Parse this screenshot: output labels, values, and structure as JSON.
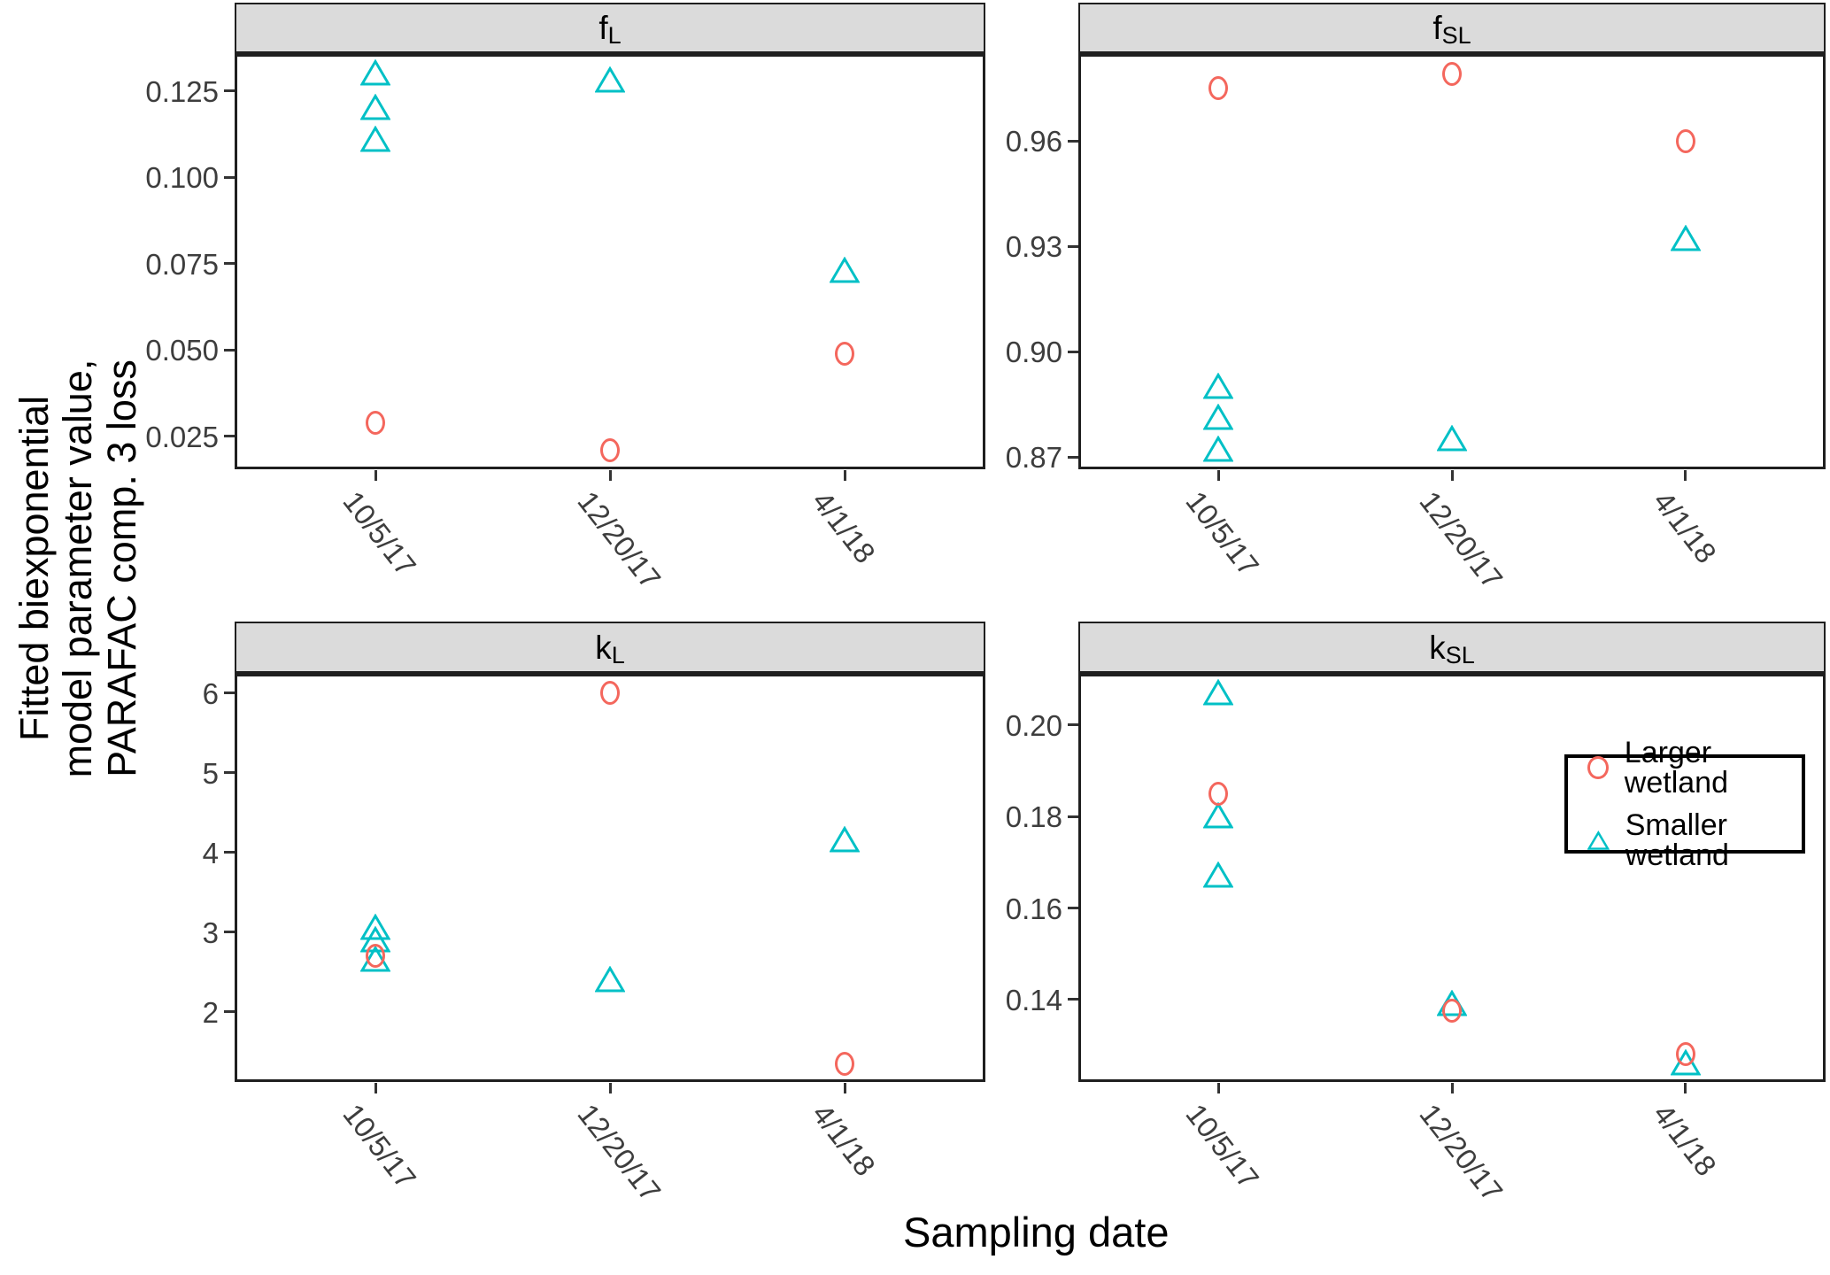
{
  "figure": {
    "x_axis_title": "Sampling date",
    "y_axis_title_lines": [
      "Fitted biexponential",
      "model parameter value,",
      "PARAFAC comp. 3 loss"
    ]
  },
  "legend": {
    "items": [
      {
        "label": "Larger wetland",
        "series": "larger",
        "marker": "circle"
      },
      {
        "label": "Smaller wetland",
        "series": "smaller",
        "marker": "triangle"
      }
    ]
  },
  "colors": {
    "larger": "#F4675D",
    "smaller": "#00C0C6",
    "strip_bg": "#DBDBDB",
    "axis_text": "#3d3d3d",
    "panel_border": "#1f1f1f"
  },
  "chart_data": {
    "type": "scatter",
    "faceted": true,
    "grid": false,
    "legend_position": "inside-bottom-right-panel",
    "categories": [
      "10/5/17",
      "12/20/17",
      "4/1/18"
    ],
    "series_meta": {
      "larger": {
        "name": "Larger wetland",
        "marker": "circle",
        "color": "#F4675D"
      },
      "smaller": {
        "name": "Smaller wetland",
        "marker": "triangle",
        "color": "#00C0C6"
      }
    },
    "facets": [
      {
        "key": "fL",
        "label_base": "f",
        "label_sub": "L",
        "ylim": [
          0.0155,
          0.1355
        ],
        "yticks": [
          0.025,
          0.05,
          0.075,
          0.1,
          0.125
        ],
        "ytick_labels": [
          "0.025",
          "0.050",
          "0.075",
          "0.100",
          "0.125"
        ],
        "points": [
          {
            "x": "10/5/17",
            "series": "smaller",
            "y": 0.13
          },
          {
            "x": "10/5/17",
            "series": "smaller",
            "y": 0.12
          },
          {
            "x": "10/5/17",
            "series": "smaller",
            "y": 0.111
          },
          {
            "x": "12/20/17",
            "series": "smaller",
            "y": 0.128
          },
          {
            "x": "4/1/18",
            "series": "smaller",
            "y": 0.073
          },
          {
            "x": "10/5/17",
            "series": "larger",
            "y": 0.029
          },
          {
            "x": "12/20/17",
            "series": "larger",
            "y": 0.021
          },
          {
            "x": "4/1/18",
            "series": "larger",
            "y": 0.049
          }
        ]
      },
      {
        "key": "fSL",
        "label_base": "f",
        "label_sub": "SL",
        "ylim": [
          0.8665,
          0.9845
        ],
        "yticks": [
          0.87,
          0.9,
          0.93,
          0.96
        ],
        "ytick_labels": [
          "0.87",
          "0.90",
          "0.93",
          "0.96"
        ],
        "points": [
          {
            "x": "10/5/17",
            "series": "smaller",
            "y": 0.89
          },
          {
            "x": "10/5/17",
            "series": "smaller",
            "y": 0.881
          },
          {
            "x": "10/5/17",
            "series": "smaller",
            "y": 0.872
          },
          {
            "x": "12/20/17",
            "series": "smaller",
            "y": 0.875
          },
          {
            "x": "4/1/18",
            "series": "smaller",
            "y": 0.932
          },
          {
            "x": "10/5/17",
            "series": "larger",
            "y": 0.975
          },
          {
            "x": "12/20/17",
            "series": "larger",
            "y": 0.979
          },
          {
            "x": "4/1/18",
            "series": "larger",
            "y": 0.96
          }
        ]
      },
      {
        "key": "kL",
        "label_base": "k",
        "label_sub": "L",
        "ylim": [
          1.12,
          6.23
        ],
        "yticks": [
          2,
          3,
          4,
          5,
          6
        ],
        "ytick_labels": [
          "2",
          "3",
          "4",
          "5",
          "6"
        ],
        "points": [
          {
            "x": "10/5/17",
            "series": "smaller",
            "y": 3.05
          },
          {
            "x": "10/5/17",
            "series": "smaller",
            "y": 2.9
          },
          {
            "x": "10/5/17",
            "series": "smaller",
            "y": 2.65
          },
          {
            "x": "12/20/17",
            "series": "smaller",
            "y": 2.4
          },
          {
            "x": "4/1/18",
            "series": "smaller",
            "y": 4.15
          },
          {
            "x": "10/5/17",
            "series": "larger",
            "y": 2.7
          },
          {
            "x": "12/20/17",
            "series": "larger",
            "y": 6.0
          },
          {
            "x": "4/1/18",
            "series": "larger",
            "y": 1.35
          }
        ]
      },
      {
        "key": "kSL",
        "label_base": "k",
        "label_sub": "SL",
        "ylim": [
          0.122,
          0.211
        ],
        "yticks": [
          0.14,
          0.16,
          0.18,
          0.2
        ],
        "ytick_labels": [
          "0.14",
          "0.16",
          "0.18",
          "0.20"
        ],
        "points": [
          {
            "x": "10/5/17",
            "series": "smaller",
            "y": 0.207
          },
          {
            "x": "10/5/17",
            "series": "smaller",
            "y": 0.18
          },
          {
            "x": "10/5/17",
            "series": "smaller",
            "y": 0.167
          },
          {
            "x": "12/20/17",
            "series": "smaller",
            "y": 0.139
          },
          {
            "x": "4/1/18",
            "series": "smaller",
            "y": 0.126
          },
          {
            "x": "10/5/17",
            "series": "larger",
            "y": 0.185
          },
          {
            "x": "12/20/17",
            "series": "larger",
            "y": 0.1375
          },
          {
            "x": "4/1/18",
            "series": "larger",
            "y": 0.128
          }
        ]
      }
    ]
  }
}
